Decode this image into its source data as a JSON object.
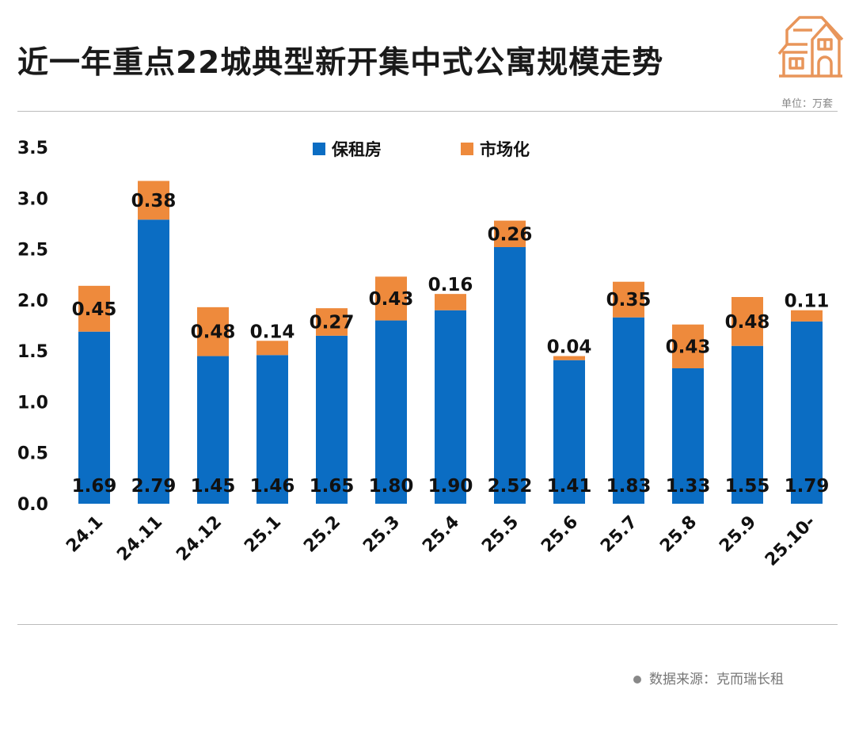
{
  "header": {
    "title": "近一年重点22城典型新开集中式公寓规模走势",
    "unit": "单位：万套"
  },
  "footer": {
    "source": "数据来源：克而瑞长租"
  },
  "colors": {
    "blue": "#0b6dc3",
    "orange": "#ee8a3c",
    "icon": "#e8955a"
  },
  "chart_data": {
    "type": "bar",
    "stacked": true,
    "title": "近一年重点22城典型新开集中式公寓规模走势",
    "ylabel": "万套",
    "ylim": [
      0,
      3.5
    ],
    "yticks": [
      "0.0",
      "0.5",
      "1.0",
      "1.5",
      "2.0",
      "2.5",
      "3.0",
      "3.5"
    ],
    "legend_position": "top-center",
    "categories": [
      "24.1",
      "24.11",
      "24.12",
      "25.1",
      "25.2",
      "25.3",
      "25.4",
      "25.5",
      "25.6",
      "25.7",
      "25.8",
      "25.9",
      "25.10-"
    ],
    "series": [
      {
        "name": "保租房",
        "values": [
          1.69,
          2.79,
          1.45,
          1.46,
          1.65,
          1.8,
          1.9,
          2.52,
          1.41,
          1.83,
          1.33,
          1.55,
          1.79
        ]
      },
      {
        "name": "市场化",
        "values": [
          0.45,
          0.38,
          0.48,
          0.14,
          0.27,
          0.43,
          0.16,
          0.26,
          0.04,
          0.35,
          0.43,
          0.48,
          0.11
        ]
      }
    ]
  }
}
